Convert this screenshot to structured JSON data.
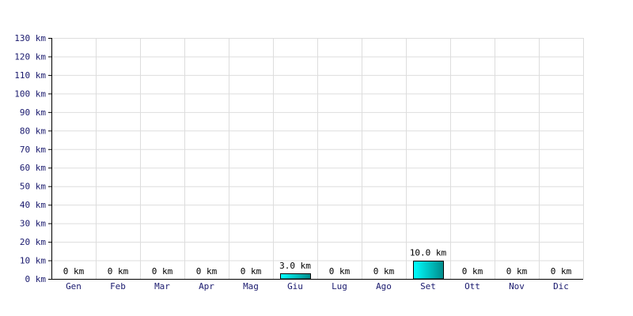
{
  "chart_data": {
    "type": "bar",
    "categories": [
      "Gen",
      "Feb",
      "Mar",
      "Apr",
      "Mag",
      "Giu",
      "Lug",
      "Ago",
      "Set",
      "Ott",
      "Nov",
      "Dic"
    ],
    "values": [
      0,
      0,
      0,
      0,
      0,
      3.0,
      0,
      0,
      10.0,
      0,
      0,
      0
    ],
    "data_labels": [
      "0 km",
      "0 km",
      "0 km",
      "0 km",
      "0 km",
      "3.0 km",
      "0 km",
      "0 km",
      "10.0 km",
      "0 km",
      "0 km",
      "0 km"
    ],
    "y_ticks": [
      0,
      10,
      20,
      30,
      40,
      50,
      60,
      70,
      80,
      90,
      100,
      110,
      120,
      130
    ],
    "y_tick_labels": [
      "0 km",
      "10 km",
      "20 km",
      "30 km",
      "40 km",
      "50 km",
      "60 km",
      "70 km",
      "80 km",
      "90 km",
      "100 km",
      "110 km",
      "120 km",
      "130 km"
    ],
    "ylim": [
      0,
      130
    ],
    "grid": true,
    "legend": "none",
    "colors": {
      "bar_light": "#00ffff",
      "bar_dark": "#008b8b",
      "bar_stroke": "#000000",
      "grid": "#dddddd",
      "axis": "#000000",
      "tick_text": "#1a1a6e"
    }
  }
}
